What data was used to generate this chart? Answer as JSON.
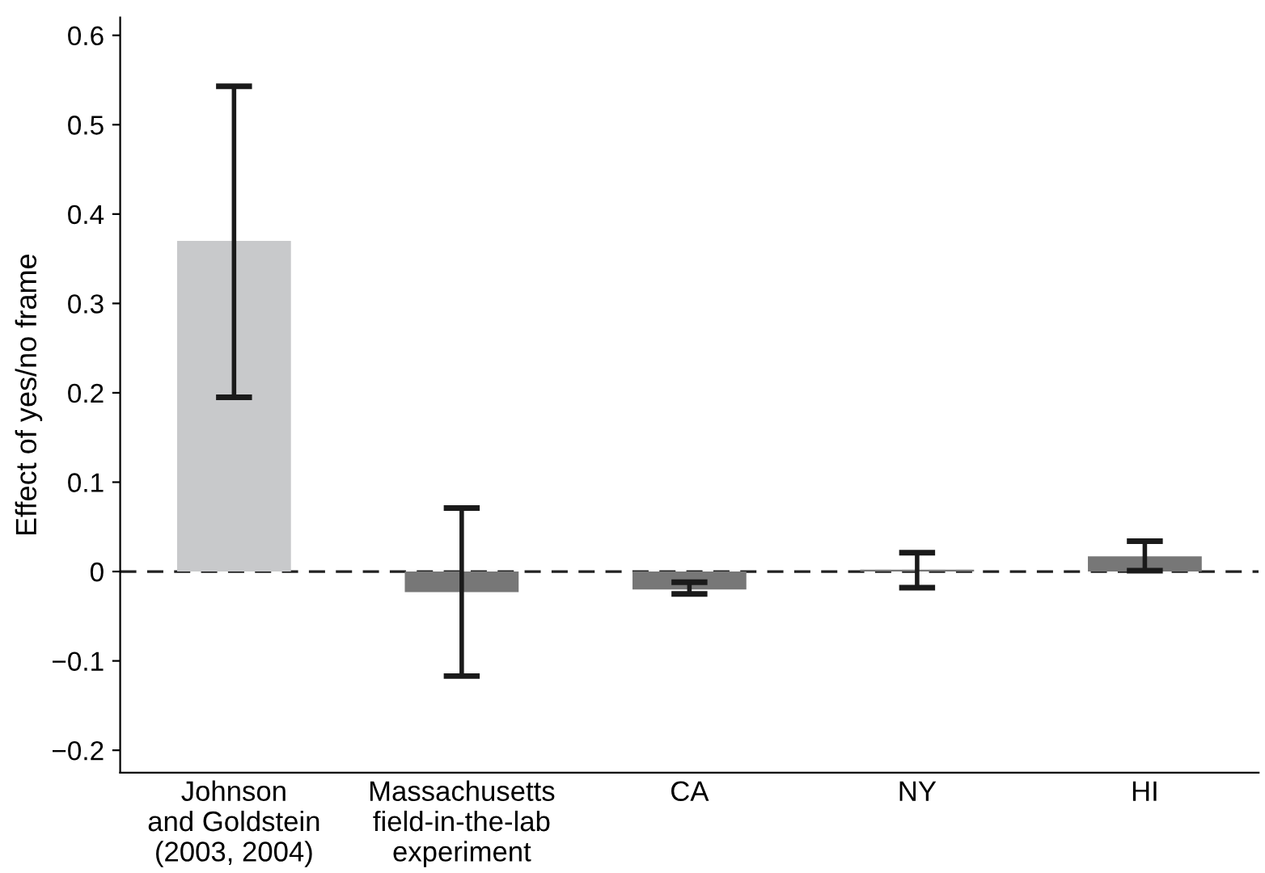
{
  "chart_data": {
    "type": "bar",
    "ylabel": "Effect of yes/no frame",
    "categories": [
      "Johnson\nand Goldstein\n(2003, 2004)",
      "Massachusetts\nfield-in-the-lab\nexperiment",
      "CA",
      "NY",
      "HI"
    ],
    "values": [
      0.37,
      -0.023,
      -0.02,
      0.002,
      0.017
    ],
    "colors": [
      "#c8c9cb",
      "#777777",
      "#777777",
      "#777777",
      "#777777"
    ],
    "errors": [
      [
        0.195,
        0.543
      ],
      [
        -0.117,
        0.071
      ],
      [
        -0.025,
        -0.012
      ],
      [
        -0.018,
        0.021
      ],
      [
        0.001,
        0.034
      ]
    ],
    "ylim": [
      -0.225,
      0.62
    ],
    "yticks": [
      {
        "value": -0.2,
        "label": "−0.2"
      },
      {
        "value": -0.1,
        "label": "−0.1"
      },
      0,
      0.1,
      0.2,
      0.3,
      0.4,
      0.5,
      0.6
    ],
    "ref_lines": [
      {
        "axis": "y",
        "value": 0,
        "line_style": "dashed",
        "color": "#222222"
      }
    ],
    "grid": false,
    "legend": false
  }
}
